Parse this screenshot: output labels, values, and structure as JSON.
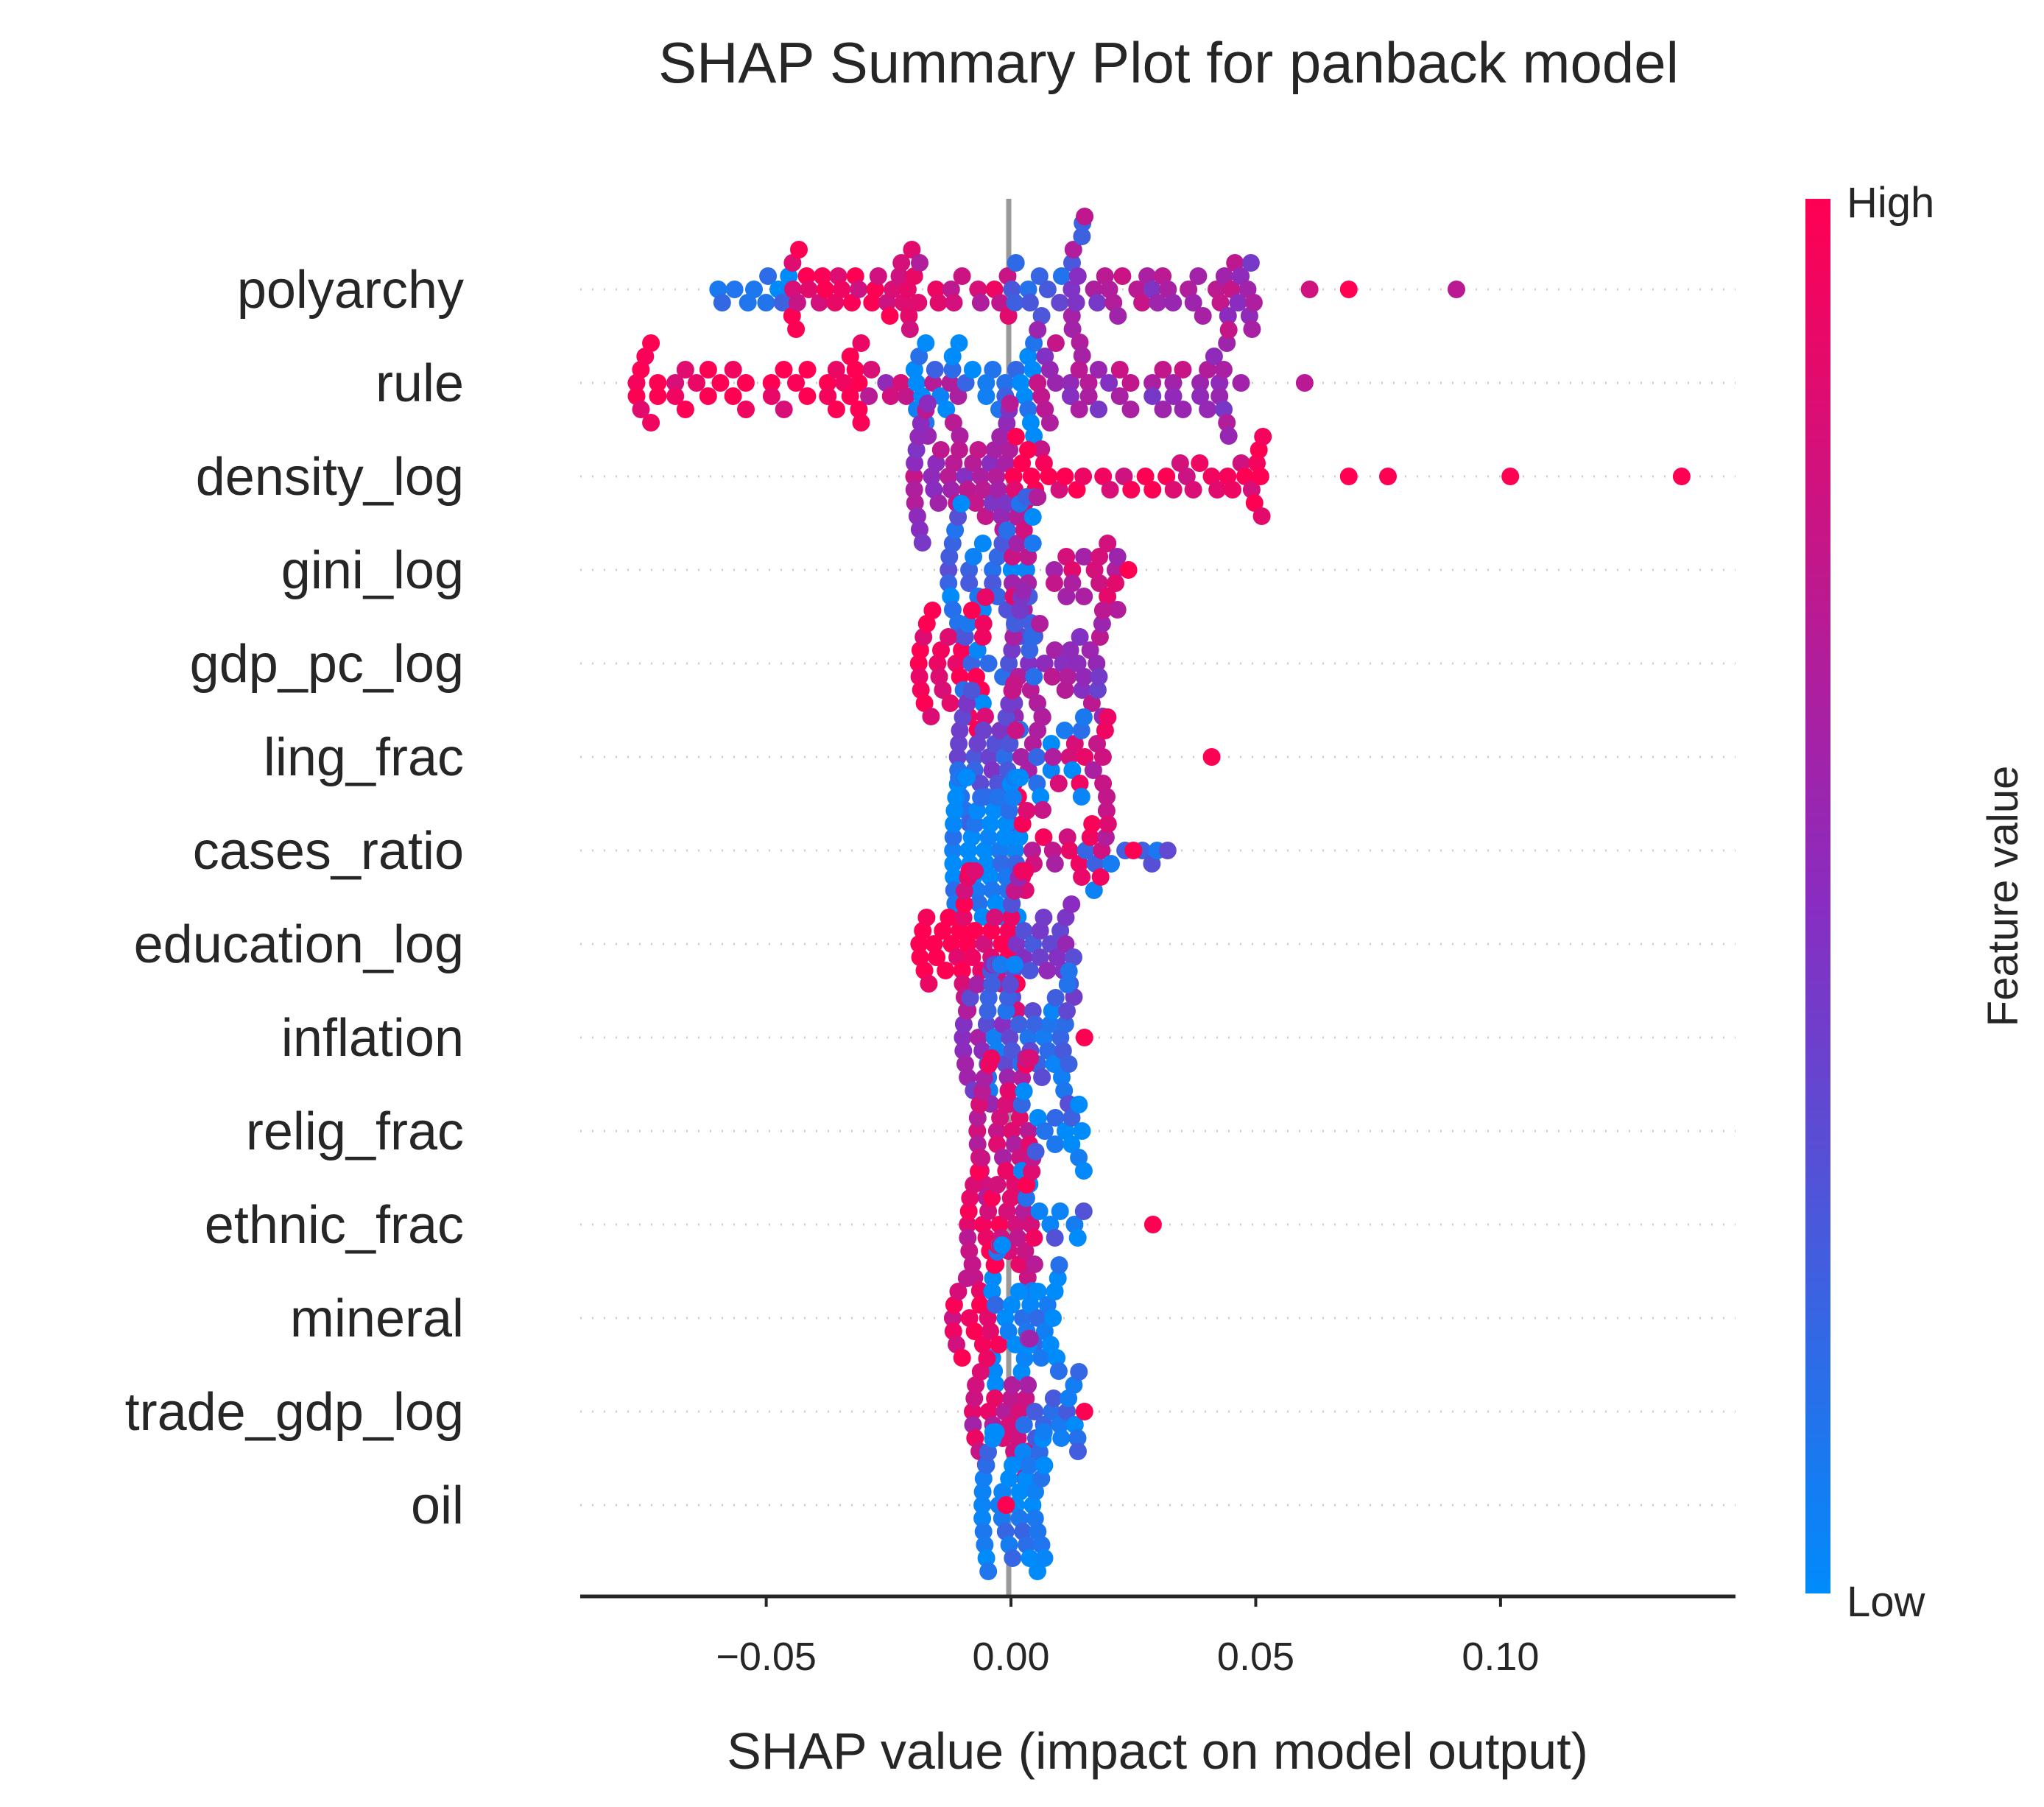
{
  "chart_data": {
    "type": "scatter",
    "subtype": "shap-beeswarm",
    "title": "SHAP Summary Plot for panback model",
    "xlabel": "SHAP value (impact on model output)",
    "xticks": [
      -0.05,
      0.0,
      0.05,
      0.1
    ],
    "xtick_labels": [
      "−0.05",
      "0.00",
      "0.05",
      "0.10"
    ],
    "xlim": [
      -0.088,
      0.148
    ],
    "colorbar": {
      "title": "Feature value",
      "high_label": "High",
      "low_label": "Low",
      "low_color": "#008bfb",
      "mid_color": "#8a2cbf",
      "high_color": "#ff0052"
    },
    "features": [
      {
        "name": "polyarchy",
        "min": -0.063,
        "max": 0.091,
        "outliers": [
          [
            0.061,
            0.8
          ],
          [
            0.069,
            1.0
          ],
          [
            0.091,
            0.7
          ]
        ],
        "clusters": [
          [
            -0.06,
            -0.045,
            0.05,
            10
          ],
          [
            -0.045,
            -0.02,
            0.9,
            30
          ],
          [
            -0.02,
            0.0,
            0.8,
            14
          ],
          [
            0.0,
            0.015,
            0.3,
            14
          ],
          [
            0.012,
            0.05,
            0.6,
            40
          ]
        ]
      },
      {
        "name": "rule",
        "min": -0.076,
        "max": 0.06,
        "outliers": [
          [
            0.06,
            0.7
          ],
          [
            0.047,
            0.6
          ]
        ],
        "clusters": [
          [
            -0.077,
            -0.03,
            1.0,
            40
          ],
          [
            -0.03,
            -0.01,
            0.7,
            12
          ],
          [
            -0.02,
            0.005,
            0.05,
            30
          ],
          [
            0.005,
            0.045,
            0.6,
            44
          ]
        ]
      },
      {
        "name": "density_log",
        "min": -0.02,
        "max": 0.137,
        "outliers": [
          [
            0.069,
            1.0
          ],
          [
            0.077,
            1.0
          ],
          [
            0.102,
            1.0
          ],
          [
            0.137,
            1.0
          ]
        ],
        "clusters": [
          [
            -0.02,
            0.0,
            0.6,
            45
          ],
          [
            0.0,
            0.052,
            0.95,
            40
          ]
        ]
      },
      {
        "name": "gini_log",
        "min": -0.013,
        "max": 0.024,
        "outliers": [
          [
            0.024,
            1.0
          ]
        ],
        "clusters": [
          [
            -0.013,
            0.005,
            0.15,
            36
          ],
          [
            0.0,
            0.022,
            0.75,
            28
          ]
        ]
      },
      {
        "name": "gdp_pc_log",
        "min": -0.019,
        "max": 0.019,
        "outliers": [],
        "clusters": [
          [
            -0.019,
            -0.005,
            1.0,
            28
          ],
          [
            -0.01,
            0.005,
            0.15,
            14
          ],
          [
            0.0,
            0.019,
            0.55,
            34
          ]
        ]
      },
      {
        "name": "ling_frac",
        "min": -0.011,
        "max": 0.041,
        "outliers": [
          [
            0.041,
            1.0
          ]
        ],
        "clusters": [
          [
            -0.011,
            0.0,
            0.3,
            30
          ],
          [
            0.0,
            0.02,
            0.8,
            24
          ],
          [
            0.005,
            0.015,
            0.05,
            10
          ]
        ]
      },
      {
        "name": "cases_ratio",
        "min": -0.012,
        "max": 0.032,
        "outliers": [
          [
            0.032,
            0.35
          ],
          [
            0.025,
            1.0
          ]
        ],
        "clusters": [
          [
            -0.012,
            0.002,
            0.02,
            60
          ],
          [
            0.002,
            0.02,
            0.8,
            20
          ],
          [
            0.015,
            0.03,
            0.15,
            8
          ]
        ]
      },
      {
        "name": "education_log",
        "min": -0.019,
        "max": 0.013,
        "outliers": [],
        "clusters": [
          [
            -0.019,
            -0.008,
            1.0,
            20
          ],
          [
            -0.01,
            0.003,
            0.9,
            30
          ],
          [
            0.0,
            0.013,
            0.4,
            24
          ]
        ]
      },
      {
        "name": "inflation",
        "min": -0.01,
        "max": 0.015,
        "outliers": [
          [
            0.015,
            1.0
          ]
        ],
        "clusters": [
          [
            -0.01,
            0.0,
            0.5,
            24
          ],
          [
            -0.005,
            0.012,
            0.2,
            40
          ]
        ]
      },
      {
        "name": "relig_frac",
        "min": -0.007,
        "max": 0.015,
        "outliers": [],
        "clusters": [
          [
            -0.007,
            0.004,
            0.8,
            34
          ],
          [
            0.002,
            0.015,
            0.1,
            16
          ]
        ]
      },
      {
        "name": "ethnic_frac",
        "min": -0.009,
        "max": 0.029,
        "outliers": [
          [
            0.029,
            1.0
          ]
        ],
        "clusters": [
          [
            -0.009,
            0.005,
            0.85,
            36
          ],
          [
            0.003,
            0.015,
            0.15,
            10
          ]
        ]
      },
      {
        "name": "mineral",
        "min": -0.012,
        "max": 0.01,
        "outliers": [],
        "clusters": [
          [
            -0.012,
            -0.002,
            0.9,
            18
          ],
          [
            -0.004,
            0.01,
            0.05,
            30
          ]
        ]
      },
      {
        "name": "trade_gdp_log",
        "min": -0.008,
        "max": 0.015,
        "outliers": [
          [
            0.015,
            1.0
          ]
        ],
        "clusters": [
          [
            -0.008,
            0.004,
            0.75,
            26
          ],
          [
            0.002,
            0.014,
            0.1,
            20
          ]
        ]
      },
      {
        "name": "oil",
        "min": -0.006,
        "max": 0.007,
        "outliers": [
          [
            -0.001,
            1.0
          ]
        ],
        "clusters": [
          [
            -0.006,
            0.007,
            0.05,
            44
          ]
        ]
      }
    ]
  }
}
